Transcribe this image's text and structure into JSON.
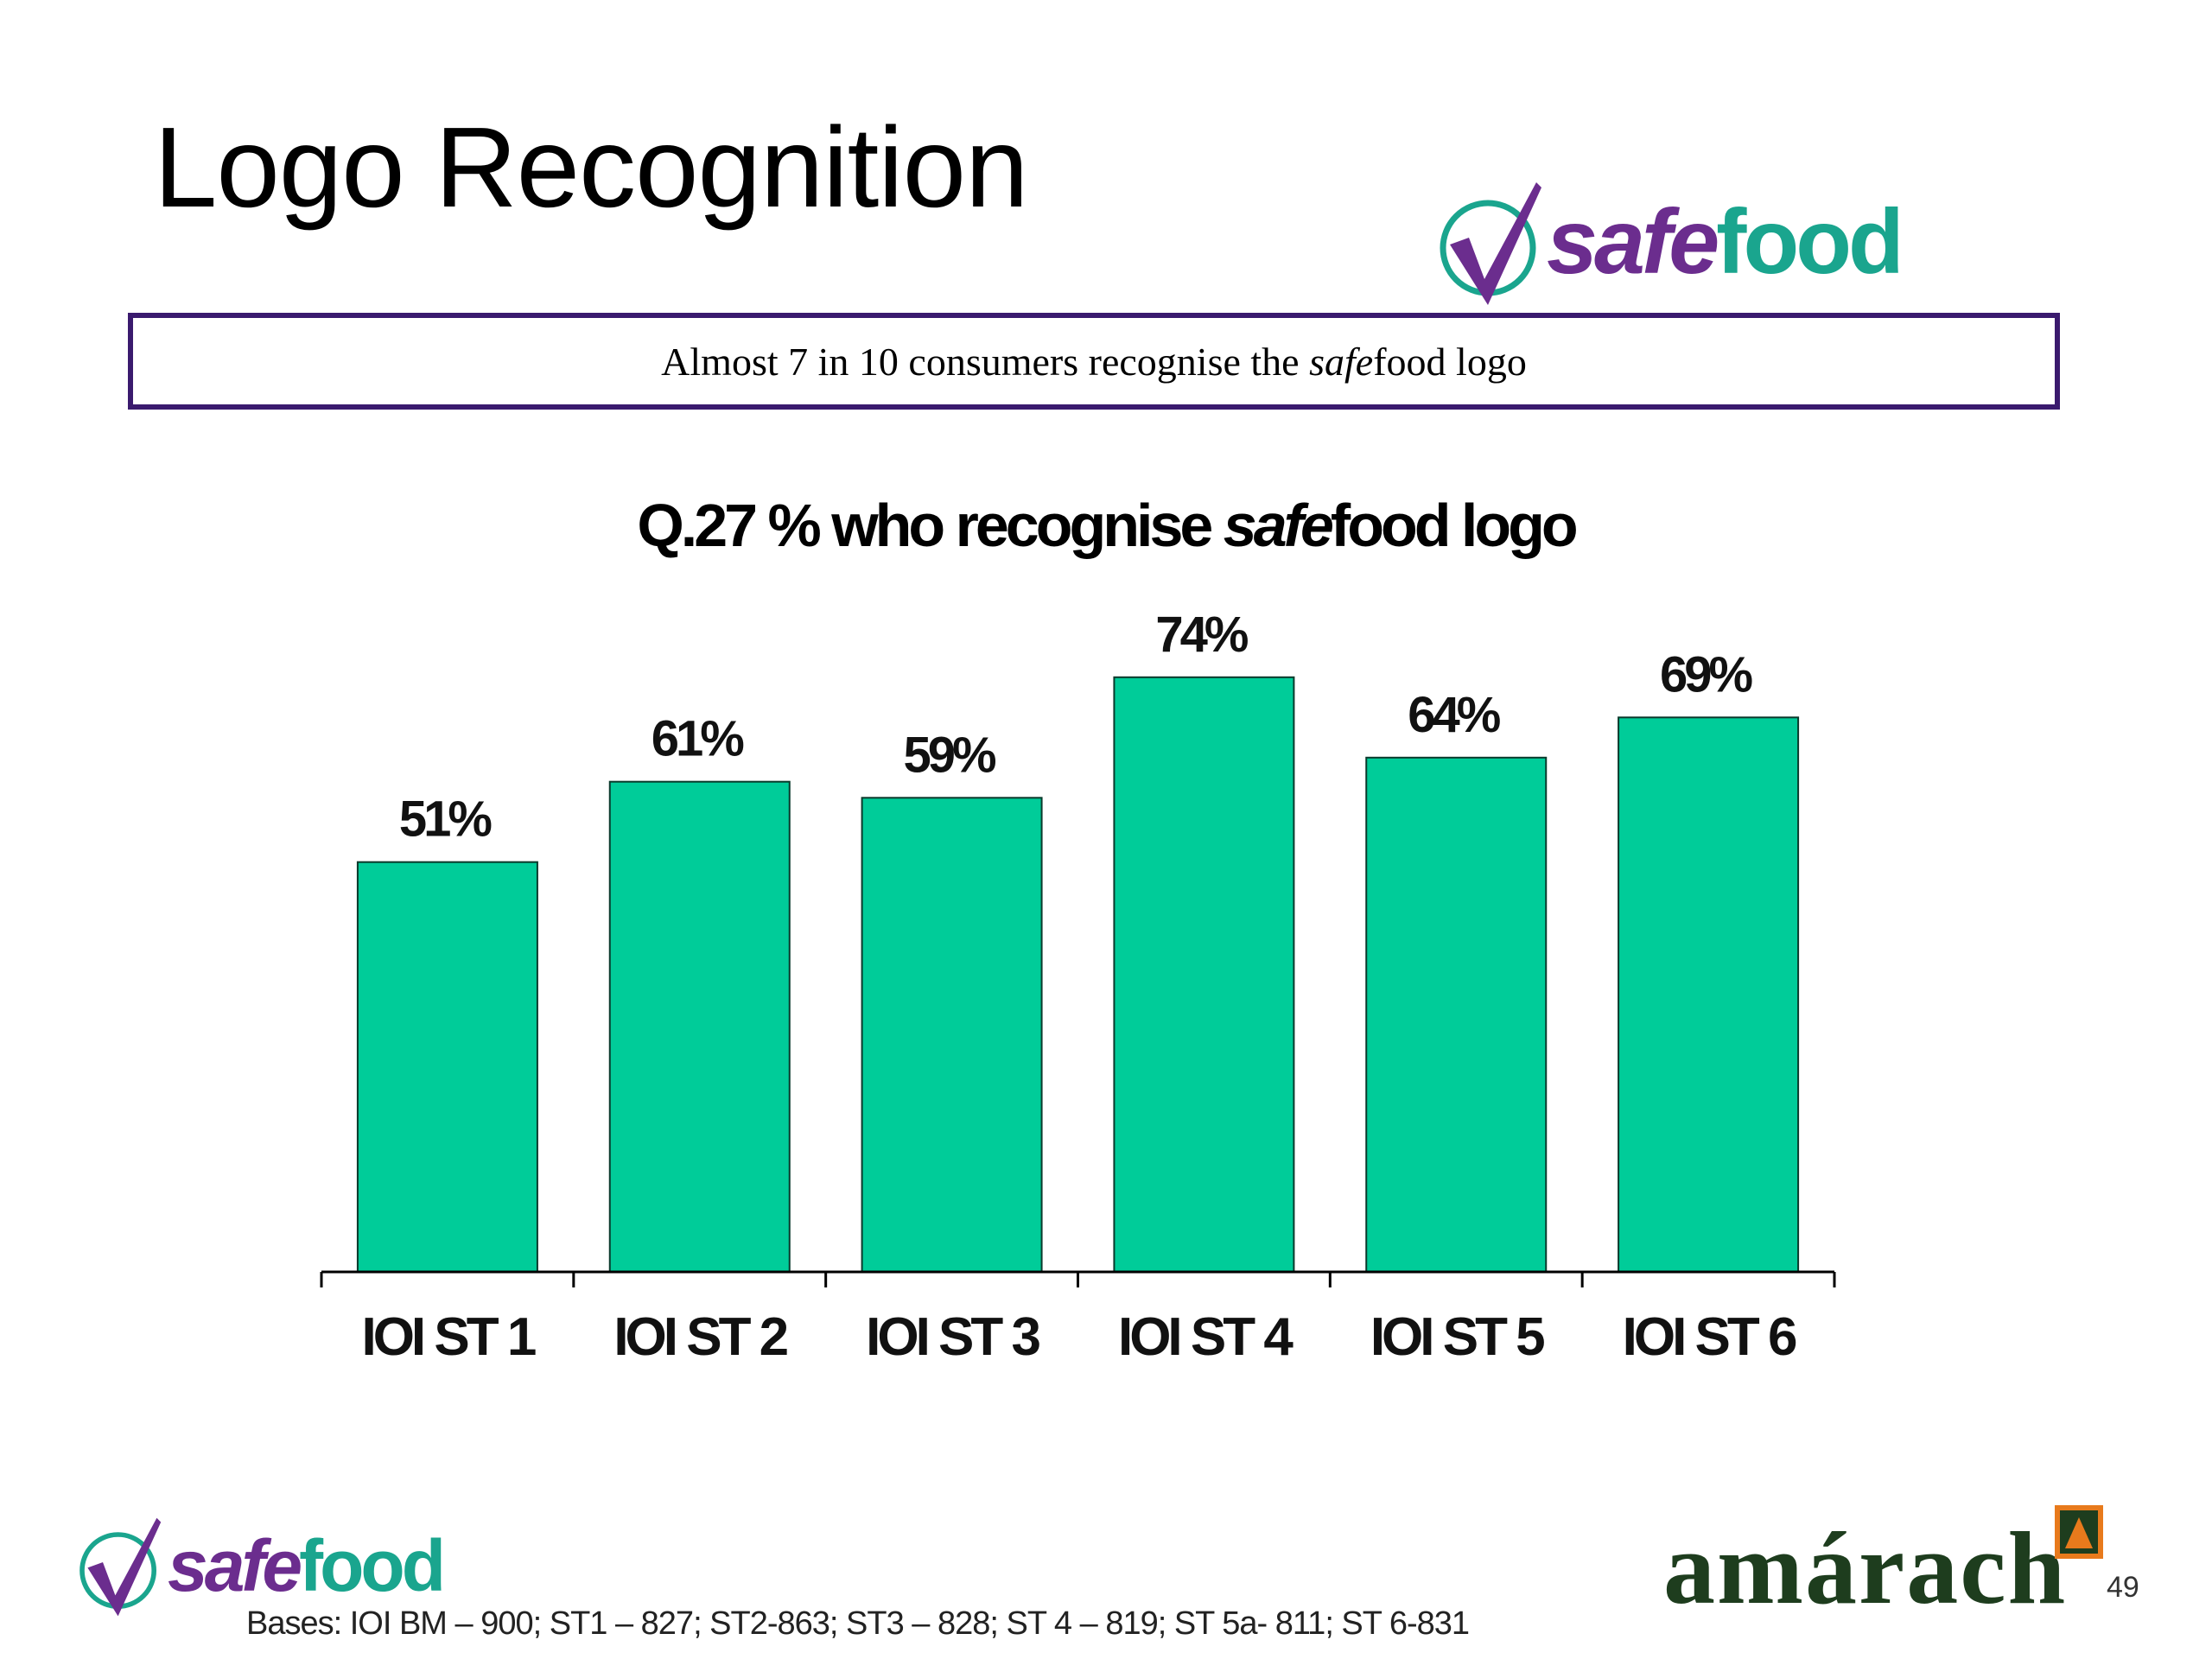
{
  "slide": {
    "title": "Logo Recognition",
    "summary_prefix": "Almost 7 in 10 consumers recognise the ",
    "summary_italic": "safe",
    "summary_suffix": "food logo",
    "bases": "Bases: IOI BM – 900; ST1 – 827; ST2-863; ST3 – 828; ST 4 – 819; ST 5a- 811; ST 6-831",
    "page_number": "49"
  },
  "logos": {
    "safefood_safe": "safe",
    "safefood_food": "food",
    "amarach": "amárach",
    "colors": {
      "purple": "#6b2d8e",
      "teal": "#1aa58e",
      "amarach_green": "#1e3d1e",
      "amarach_orange": "#e87a1c"
    }
  },
  "chart_data": {
    "type": "bar",
    "title_prefix": "Q.27 % who recognise ",
    "title_italic": "safe",
    "title_suffix": "food logo",
    "categories": [
      "IOI ST 1",
      "IOI ST 2",
      "IOI ST 3",
      "IOI ST 4",
      "IOI ST 5",
      "IOI ST 6"
    ],
    "values": [
      51,
      61,
      59,
      74,
      64,
      69
    ],
    "value_labels": [
      "51%",
      "61%",
      "59%",
      "74%",
      "64%",
      "69%"
    ],
    "ylim": [
      0,
      100
    ],
    "bar_color": "#00cc99",
    "grid": false,
    "legend": "none"
  }
}
